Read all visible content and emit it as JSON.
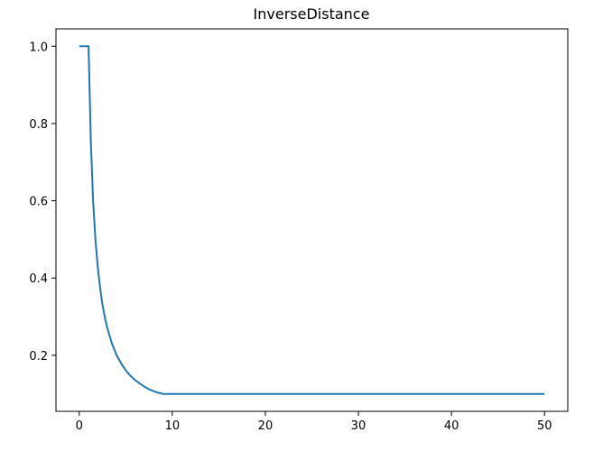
{
  "chart_data": {
    "type": "line",
    "title": "InverseDistance",
    "xlabel": "",
    "ylabel": "",
    "xlim": [
      -2.5,
      52.5
    ],
    "ylim": [
      0.055,
      1.045
    ],
    "xticks": [
      0,
      10,
      20,
      30,
      40,
      50
    ],
    "yticks": [
      0.2,
      0.4,
      0.6,
      0.8,
      1.0
    ],
    "xtick_labels": [
      "0",
      "10",
      "20",
      "30",
      "40",
      "50"
    ],
    "ytick_labels": [
      "0.2",
      "0.4",
      "0.6",
      "0.8",
      "1.0"
    ],
    "grid": false,
    "legend": "none",
    "series": [
      {
        "color": "#1f77b4",
        "x": [
          0,
          0.5,
          1,
          1.25,
          1.5,
          1.75,
          2,
          2.25,
          2.5,
          2.75,
          3,
          3.5,
          4,
          4.5,
          5,
          5.5,
          6,
          6.5,
          7,
          7.5,
          8,
          8.5,
          9,
          9.5,
          10,
          15,
          20,
          25,
          30,
          35,
          40,
          45,
          50
        ],
        "y": [
          1.0,
          1.0,
          1.0,
          0.748,
          0.597,
          0.497,
          0.426,
          0.373,
          0.331,
          0.299,
          0.272,
          0.231,
          0.201,
          0.179,
          0.161,
          0.147,
          0.136,
          0.127,
          0.119,
          0.112,
          0.107,
          0.103,
          0.1,
          0.1,
          0.1,
          0.1,
          0.1,
          0.1,
          0.1,
          0.1,
          0.1,
          0.1,
          0.1
        ]
      }
    ]
  }
}
